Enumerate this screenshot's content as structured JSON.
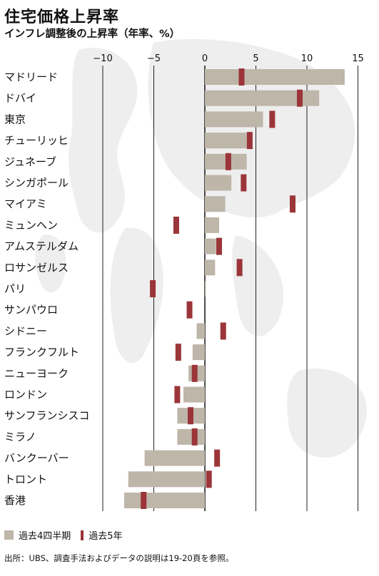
{
  "title": "住宅価格上昇率",
  "subtitle": "インフレ調整後の上昇率（年率、%）",
  "legend": {
    "quarters": "過去4四半期",
    "years": "過去5年"
  },
  "source": "出所：UBS、調査手法およびデータの説明は19-20頁を参照。",
  "colors": {
    "quarters": "#bdb6a9",
    "years": "#9b3539",
    "map": "#eeeeee"
  },
  "chart_data": {
    "type": "bar",
    "orientation": "horizontal",
    "xlim": [
      -10,
      15
    ],
    "x_ticks": [
      -10,
      -5,
      0,
      5,
      10,
      15
    ],
    "x_tick_labels": [
      "−10",
      "−5",
      "0",
      "5",
      "10",
      "15"
    ],
    "grid": true,
    "categories": [
      "マドリード",
      "ドバイ",
      "東京",
      "チューリッヒ",
      "ジュネーブ",
      "シンガポール",
      "マイアミ",
      "ミュンヘン",
      "アムステルダム",
      "ロサンゼルス",
      "パリ",
      "サンパウロ",
      "シドニー",
      "フランクフルト",
      "ニューヨーク",
      "ロンドン",
      "サンフランシスコ",
      "ミラノ",
      "バンクーバー",
      "トロント",
      "香港"
    ],
    "series": [
      {
        "name": "過去4四半期",
        "values": [
          13.7,
          11.2,
          5.7,
          4.6,
          4.1,
          2.6,
          2.0,
          1.4,
          1.1,
          1.0,
          0.1,
          0.0,
          -0.8,
          -1.2,
          -1.6,
          -2.1,
          -2.7,
          -2.7,
          -5.9,
          -7.5,
          -7.9
        ]
      },
      {
        "name": "過去5年",
        "values": [
          3.6,
          9.3,
          6.6,
          4.4,
          2.3,
          3.8,
          8.6,
          -2.8,
          1.4,
          3.4,
          -5.1,
          -1.5,
          1.8,
          -2.6,
          -1.0,
          -2.7,
          -1.4,
          -1.0,
          1.2,
          0.4,
          -6.0
        ]
      }
    ]
  }
}
